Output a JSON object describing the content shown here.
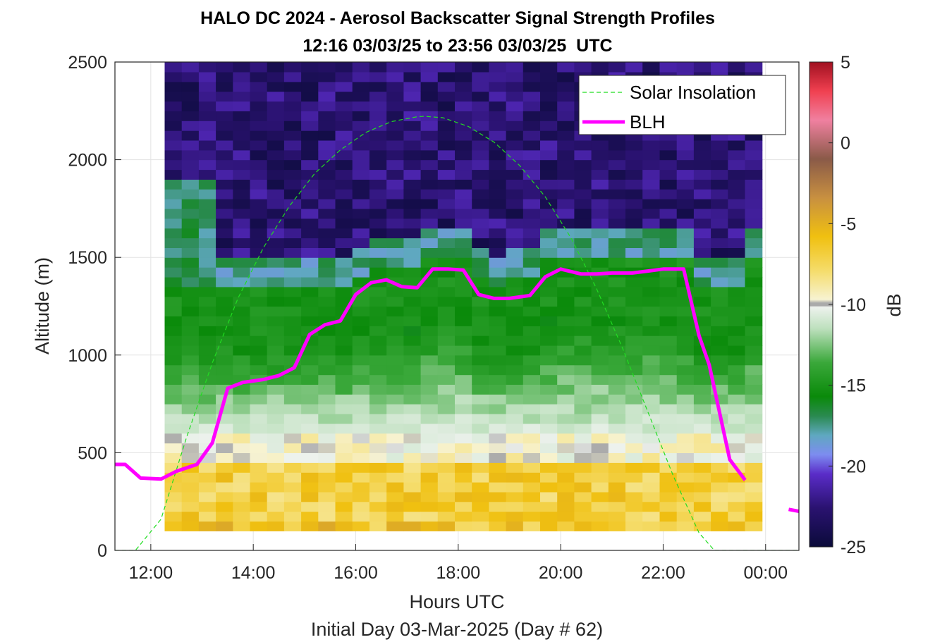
{
  "chart_data": {
    "type": "heatmap",
    "title": "HALO DC 2024 - Aerosol Backscatter Signal Strength Profiles",
    "subtitle": "12:16 03/03/25 to 23:56 03/03/25  UTC",
    "xlabel": "Hours UTC",
    "ylabel": "Altitude (m)",
    "footer": "Initial Day 03-Mar-2025 (Day # 62)",
    "xlim": [
      11.3,
      24.65
    ],
    "ylim": [
      0,
      2500
    ],
    "x_ticks": [
      12,
      14,
      16,
      18,
      20,
      22,
      24
    ],
    "x_tick_labels": [
      "12:00",
      "14:00",
      "16:00",
      "18:00",
      "20:00",
      "22:00",
      "00:00"
    ],
    "y_ticks": [
      0,
      500,
      1000,
      1500,
      2000,
      2500
    ],
    "y_tick_labels": [
      "0",
      "500",
      "1000",
      "1500",
      "2000",
      "2500"
    ],
    "grid": true,
    "legend_position": "top-right",
    "colorbar": {
      "label": "dB",
      "min": -25,
      "max": 5,
      "ticks": [
        5,
        0,
        -5,
        -10,
        -15,
        -20,
        -25
      ],
      "tick_labels": [
        "5",
        "0",
        "-5",
        "-10",
        "-15",
        "-20",
        "-25"
      ]
    },
    "heatmap": {
      "time_start": 12.27,
      "time_end": 23.93,
      "alt_start": 100,
      "alt_end": 2500
    },
    "series": [
      {
        "name": "Solar Insolation",
        "style": "dashed",
        "color": "#22dd22",
        "x": [
          11.3,
          11.7,
          12.2,
          12.7,
          13.2,
          13.7,
          14.2,
          14.7,
          15.2,
          15.7,
          16.2,
          16.7,
          17.2,
          17.35,
          17.7,
          18.2,
          18.7,
          19.2,
          19.7,
          20.2,
          20.7,
          21.2,
          21.7,
          22.2,
          22.7,
          23.0,
          23.3,
          24.65
        ],
        "y": [
          0,
          0,
          160,
          580,
          960,
          1290,
          1550,
          1760,
          1930,
          2050,
          2140,
          2195,
          2220,
          2222,
          2215,
          2170,
          2090,
          1970,
          1810,
          1600,
          1340,
          1040,
          710,
          380,
          90,
          0,
          0,
          0
        ]
      },
      {
        "name": "BLH",
        "style": "solid",
        "color": "#ff00ff",
        "x": [
          11.3,
          11.5,
          11.8,
          12.2,
          12.5,
          12.9,
          13.2,
          13.5,
          13.8,
          14.2,
          14.5,
          14.8,
          15.1,
          15.4,
          15.7,
          16.0,
          16.3,
          16.6,
          16.9,
          17.2,
          17.5,
          17.8,
          18.1,
          18.4,
          18.7,
          19.0,
          19.4,
          19.7,
          20.0,
          20.4,
          20.7,
          21.0,
          21.4,
          21.7,
          22.0,
          22.4,
          22.7,
          22.9,
          23.3,
          23.6,
          23.9,
          24.2
        ],
        "y": [
          440,
          440,
          370,
          365,
          405,
          440,
          550,
          830,
          860,
          875,
          895,
          935,
          1105,
          1155,
          1175,
          1310,
          1370,
          1385,
          1350,
          1345,
          1440,
          1440,
          1435,
          1310,
          1290,
          1290,
          1305,
          1400,
          1440,
          1415,
          1415,
          1420,
          1420,
          1430,
          1440,
          1440,
          1100,
          950,
          465,
          360,
          null,
          null
        ],
        "segment2": {
          "x": [
            24.45,
            24.65
          ],
          "y": [
            210,
            200
          ]
        }
      }
    ]
  }
}
